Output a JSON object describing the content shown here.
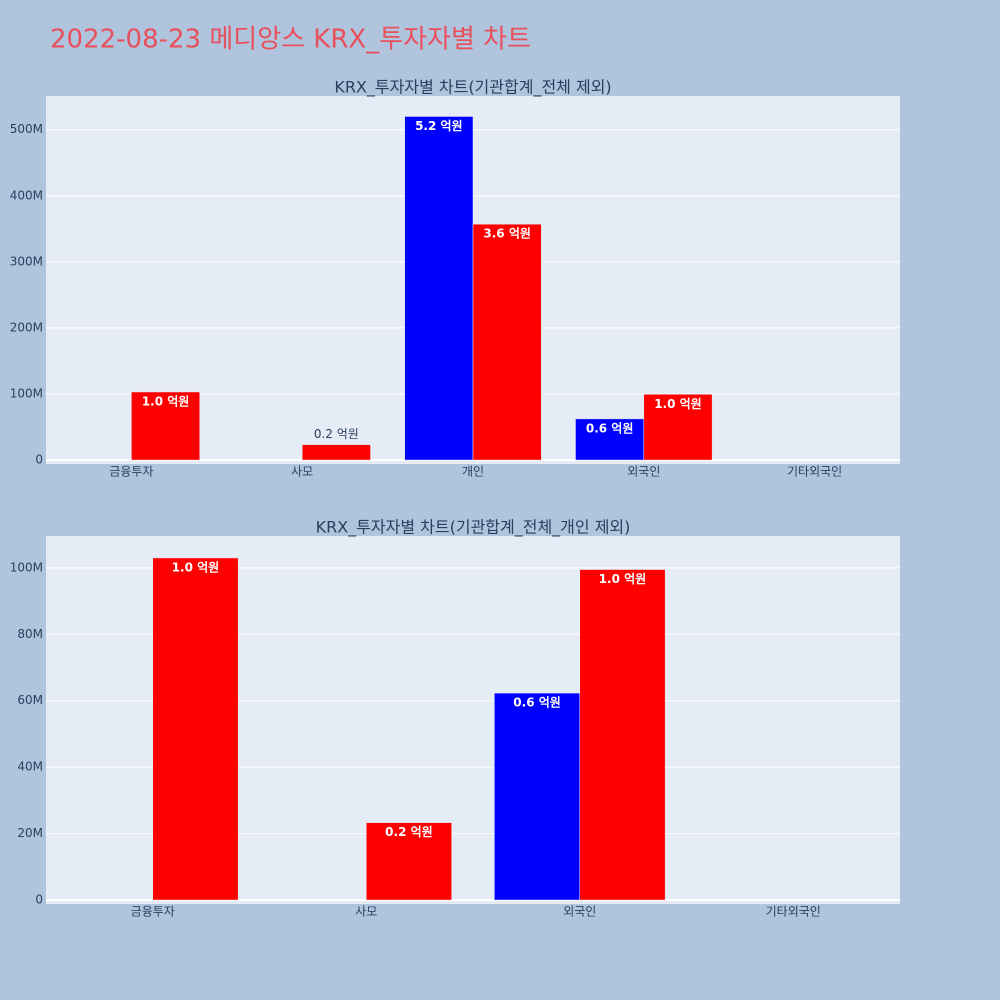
{
  "title": "2022-08-23 메디앙스 KRX_투자자별 차트",
  "chart_data": [
    {
      "type": "bar",
      "title": "KRX_투자자별 차트(기관합계_전체 제외)",
      "categories": [
        "금융투자",
        "사모",
        "개인",
        "외국인",
        "기타외국인"
      ],
      "series": [
        {
          "color": "#0000ff",
          "values": [
            null,
            null,
            520000000,
            62300000,
            null
          ],
          "value_labels": [
            null,
            null,
            "5.2 억원",
            "0.6 억원",
            null
          ]
        },
        {
          "color": "#ff0000",
          "values": [
            103000000,
            23300000,
            357000000,
            99500000,
            null
          ],
          "value_labels": [
            "1.0 억원",
            "0.2 억원",
            "3.6 억원",
            "1.0 억원",
            null
          ]
        }
      ],
      "ylim": [
        -6000000,
        551000000
      ],
      "yticks": [
        0,
        {
          "value": 100000000,
          "label": "100M"
        },
        {
          "value": 200000000,
          "label": "200M"
        },
        {
          "value": 300000000,
          "label": "300M"
        },
        {
          "value": 400000000,
          "label": "400M"
        },
        {
          "value": 500000000,
          "label": "500M"
        }
      ],
      "grid": true
    },
    {
      "type": "bar",
      "title": "KRX_투자자별 차트(기관합계_전체_개인 제외)",
      "categories": [
        "금융투자",
        "사모",
        "외국인",
        "기타외국인"
      ],
      "series": [
        {
          "color": "#0000ff",
          "values": [
            null,
            null,
            62300000,
            null
          ],
          "value_labels": [
            null,
            null,
            "0.6 억원",
            null
          ]
        },
        {
          "color": "#ff0000",
          "values": [
            103000000,
            23300000,
            99500000,
            null
          ],
          "value_labels": [
            "1.0 억원",
            "0.2 억원",
            "1.0 억원",
            null
          ]
        }
      ],
      "ylim": [
        -1200000,
        109600000
      ],
      "yticks": [
        0,
        {
          "value": 20000000,
          "label": "20M"
        },
        {
          "value": 40000000,
          "label": "40M"
        },
        {
          "value": 60000000,
          "label": "60M"
        },
        {
          "value": 80000000,
          "label": "80M"
        },
        {
          "value": 100000000,
          "label": "100M"
        }
      ],
      "grid": true
    }
  ]
}
